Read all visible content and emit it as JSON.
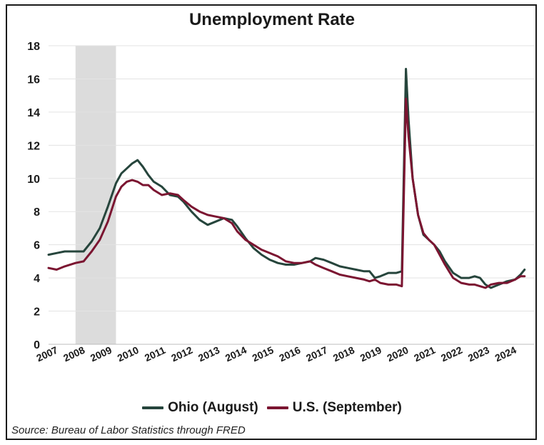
{
  "chart_data": {
    "type": "line",
    "title": "Unemployment Rate",
    "ylim": [
      0,
      18
    ],
    "yticks": [
      0,
      2,
      4,
      6,
      8,
      10,
      12,
      14,
      16,
      18
    ],
    "xlim": [
      2007,
      2025
    ],
    "xticks": [
      "2007",
      "2008",
      "2009",
      "2010",
      "2011",
      "2012",
      "2013",
      "2014",
      "2015",
      "2016",
      "2017",
      "2018",
      "2019",
      "2020",
      "2021",
      "2022",
      "2023",
      "2024"
    ],
    "grid": true,
    "shaded_period": [
      2008.0,
      2009.5
    ],
    "legend_position": "bottom",
    "source": "Source: Bureau of Labor Statistics through FRED",
    "series": [
      {
        "name": "Ohio (August)",
        "color": "#26453c",
        "x": [
          2007.0,
          2007.3,
          2007.6,
          2008.0,
          2008.3,
          2008.6,
          2008.9,
          2009.2,
          2009.5,
          2009.7,
          2009.9,
          2010.1,
          2010.3,
          2010.5,
          2010.7,
          2010.9,
          2011.2,
          2011.5,
          2011.8,
          2012.0,
          2012.3,
          2012.6,
          2012.9,
          2013.2,
          2013.5,
          2013.8,
          2014.0,
          2014.3,
          2014.6,
          2014.9,
          2015.2,
          2015.5,
          2015.8,
          2016.1,
          2016.4,
          2016.7,
          2016.9,
          2017.2,
          2017.5,
          2017.8,
          2018.1,
          2018.4,
          2018.7,
          2018.9,
          2019.1,
          2019.3,
          2019.6,
          2019.9,
          2020.1,
          2020.25,
          2020.35,
          2020.5,
          2020.7,
          2020.9,
          2021.1,
          2021.3,
          2021.5,
          2021.7,
          2022.0,
          2022.3,
          2022.6,
          2022.8,
          2023.0,
          2023.2,
          2023.4,
          2023.7,
          2024.0,
          2024.3,
          2024.5,
          2024.65
        ],
        "values": [
          5.4,
          5.5,
          5.6,
          5.6,
          5.6,
          6.2,
          7.0,
          8.3,
          9.7,
          10.3,
          10.6,
          10.9,
          11.1,
          10.7,
          10.2,
          9.8,
          9.5,
          9.0,
          8.9,
          8.6,
          8.0,
          7.5,
          7.2,
          7.4,
          7.6,
          7.5,
          7.1,
          6.4,
          5.8,
          5.4,
          5.1,
          4.9,
          4.8,
          4.8,
          4.9,
          5.0,
          5.2,
          5.1,
          4.9,
          4.7,
          4.6,
          4.5,
          4.4,
          4.4,
          4.0,
          4.1,
          4.3,
          4.3,
          4.4,
          16.6,
          13.5,
          10.0,
          7.8,
          6.6,
          6.3,
          6.0,
          5.6,
          5.0,
          4.3,
          4.0,
          4.0,
          4.1,
          4.0,
          3.6,
          3.4,
          3.6,
          3.8,
          3.9,
          4.2,
          4.5
        ]
      },
      {
        "name": "U.S. (September)",
        "color": "#7b1531",
        "x": [
          2007.0,
          2007.3,
          2007.6,
          2008.0,
          2008.3,
          2008.6,
          2008.9,
          2009.2,
          2009.5,
          2009.7,
          2009.9,
          2010.1,
          2010.3,
          2010.5,
          2010.7,
          2010.9,
          2011.2,
          2011.5,
          2011.8,
          2012.0,
          2012.3,
          2012.6,
          2012.9,
          2013.2,
          2013.5,
          2013.8,
          2014.0,
          2014.3,
          2014.6,
          2014.9,
          2015.2,
          2015.5,
          2015.8,
          2016.1,
          2016.4,
          2016.7,
          2016.9,
          2017.2,
          2017.5,
          2017.8,
          2018.1,
          2018.4,
          2018.7,
          2018.9,
          2019.1,
          2019.3,
          2019.6,
          2019.9,
          2020.1,
          2020.25,
          2020.35,
          2020.5,
          2020.7,
          2020.9,
          2021.1,
          2021.3,
          2021.5,
          2021.7,
          2022.0,
          2022.3,
          2022.6,
          2022.8,
          2023.0,
          2023.2,
          2023.4,
          2023.7,
          2024.0,
          2024.3,
          2024.5,
          2024.65
        ],
        "values": [
          4.6,
          4.5,
          4.7,
          4.9,
          5.0,
          5.6,
          6.3,
          7.4,
          8.9,
          9.5,
          9.8,
          9.9,
          9.8,
          9.6,
          9.6,
          9.3,
          9.0,
          9.1,
          9.0,
          8.7,
          8.3,
          8.0,
          7.8,
          7.7,
          7.6,
          7.3,
          6.8,
          6.3,
          6.0,
          5.7,
          5.5,
          5.3,
          5.0,
          4.9,
          4.9,
          5.0,
          4.8,
          4.6,
          4.4,
          4.2,
          4.1,
          4.0,
          3.9,
          3.8,
          3.9,
          3.7,
          3.6,
          3.6,
          3.5,
          14.8,
          12.5,
          10.0,
          7.8,
          6.7,
          6.3,
          6.0,
          5.4,
          4.8,
          4.0,
          3.7,
          3.6,
          3.6,
          3.5,
          3.4,
          3.6,
          3.7,
          3.7,
          3.9,
          4.1,
          4.1
        ]
      }
    ]
  }
}
